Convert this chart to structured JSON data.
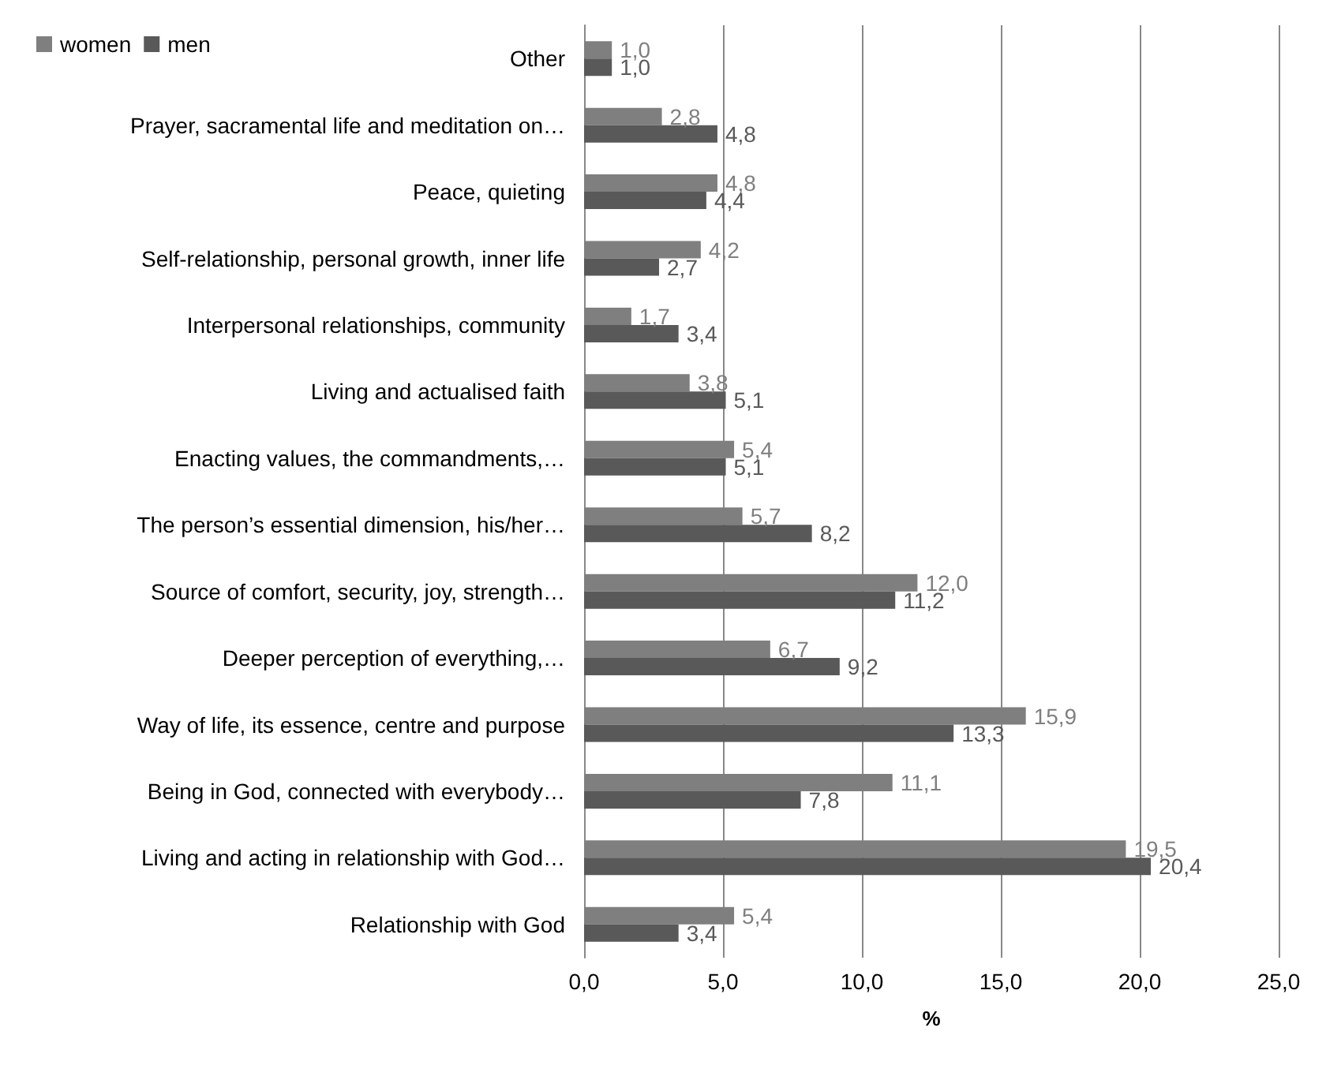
{
  "chart_data": {
    "type": "bar",
    "orientation": "horizontal",
    "xlabel": "%",
    "categories": [
      "Other",
      "Prayer, sacramental life and meditation on…",
      "Peace, quieting",
      "Self-relationship, personal growth, inner life",
      "Interpersonal relationships, community",
      "Living and actualised faith",
      "Enacting values, the commandments,…",
      "The person’s essential dimension, his/her…",
      "Source of comfort, security, joy, strength…",
      "Deeper perception of everything,…",
      "Way of life, its essence, centre and purpose",
      "Being in God, connected with everybody…",
      "Living and acting in relationship with God…",
      "Relationship with God"
    ],
    "series": [
      {
        "name": "women",
        "color": "#7f7f7f",
        "values": [
          1.0,
          2.8,
          4.8,
          4.2,
          1.7,
          3.8,
          5.4,
          5.7,
          12.0,
          6.7,
          15.9,
          11.1,
          19.5,
          5.4
        ],
        "value_labels": [
          "1,0",
          "2,8",
          "4,8",
          "4,2",
          "1,7",
          "3,8",
          "5,4",
          "5,7",
          "12,0",
          "6,7",
          "15,9",
          "11,1",
          "19,5",
          "5,4"
        ]
      },
      {
        "name": "men",
        "color": "#595959",
        "values": [
          1.0,
          4.8,
          4.4,
          2.7,
          3.4,
          5.1,
          5.1,
          8.2,
          11.2,
          9.2,
          13.3,
          7.8,
          20.4,
          3.4
        ],
        "value_labels": [
          "1,0",
          "4,8",
          "4,4",
          "2,7",
          "3,4",
          "5,1",
          "5,1",
          "8,2",
          "11,2",
          "9,2",
          "13,3",
          "7,8",
          "20,4",
          "3,4"
        ]
      }
    ],
    "xlim": [
      0,
      25
    ],
    "xticks": [
      {
        "value": 0,
        "label": "0,0"
      },
      {
        "value": 5,
        "label": "5,0"
      },
      {
        "value": 10,
        "label": "10,0"
      },
      {
        "value": 15,
        "label": "15,0"
      },
      {
        "value": 20,
        "label": "20,0"
      },
      {
        "value": 25,
        "label": "25,0"
      }
    ],
    "grid": "x",
    "legend": "top left"
  }
}
